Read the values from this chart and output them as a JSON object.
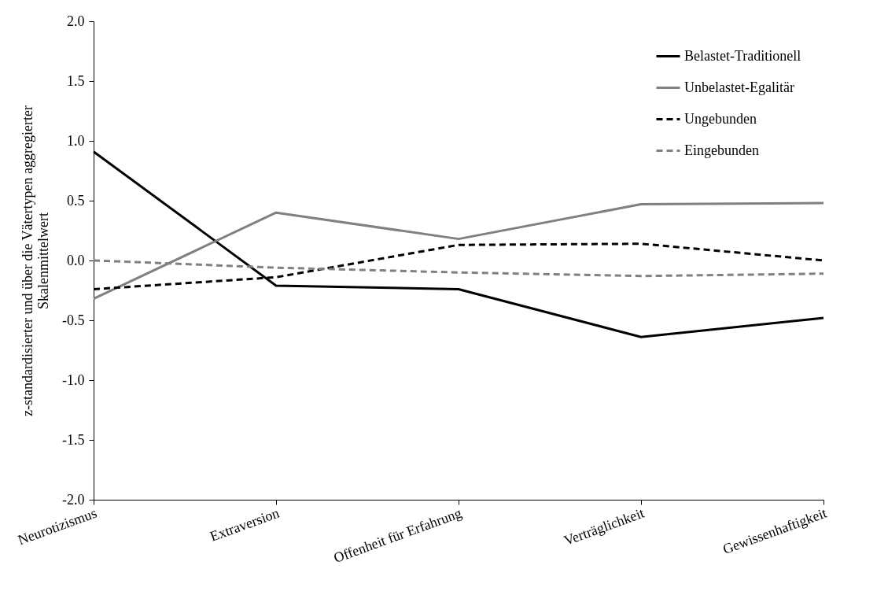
{
  "chart_data": {
    "type": "line",
    "ylabel": "z-standardisierter und über die Vätertypen aggregierter\nSkalenmittelwert",
    "categories": [
      "Neurotizismus",
      "Extraversion",
      "Offenheit für Erfahrung",
      "Verträglichkeit",
      "Gewissenhaftigkeit"
    ],
    "series": [
      {
        "name": "Belastet-Traditionell",
        "color": "#000000",
        "line_style": "solid",
        "values": [
          0.91,
          -0.21,
          -0.24,
          -0.64,
          -0.48
        ]
      },
      {
        "name": "Unbelastet-Egalitär",
        "color": "#808080",
        "line_style": "solid",
        "values": [
          -0.32,
          0.4,
          0.18,
          0.47,
          0.48
        ]
      },
      {
        "name": "Ungebunden",
        "color": "#000000",
        "line_style": "dashed",
        "values": [
          -0.24,
          -0.14,
          0.13,
          0.14,
          0.0
        ]
      },
      {
        "name": "Eingebunden",
        "color": "#808080",
        "line_style": "dashed",
        "values": [
          0.0,
          -0.06,
          -0.1,
          -0.13,
          -0.11
        ]
      }
    ],
    "ylim": [
      -2,
      2
    ],
    "yticks": [
      {
        "value": -2,
        "label": "-2.0"
      },
      {
        "value": -1.5,
        "label": "-1.5"
      },
      {
        "value": -1,
        "label": "-1.0"
      },
      {
        "value": -0.5,
        "label": "-0.5"
      },
      {
        "value": 0,
        "label": "0.0"
      },
      {
        "value": 0.5,
        "label": "0.5"
      },
      {
        "value": 1,
        "label": "1.0"
      },
      {
        "value": 1.5,
        "label": "1.5"
      },
      {
        "value": 2,
        "label": "2.0"
      }
    ],
    "grid": false,
    "legend": "top right"
  }
}
